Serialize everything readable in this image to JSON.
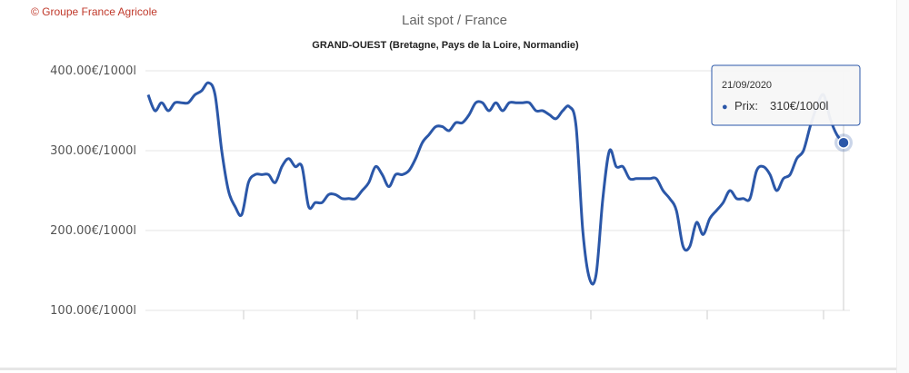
{
  "credit": "© Groupe France Agricole",
  "title": "Lait spot / France",
  "subtitle": "GRAND-OUEST (Bretagne, Pays de la Loire, Normandie)",
  "tooltip": {
    "date": "21/09/2020",
    "bullet": "●",
    "series_label": "Prix",
    "value_text": "310€/1000l"
  },
  "colors": {
    "line": "#2b57a8",
    "grid": "#e6e6e6",
    "credit": "#c0392b"
  },
  "chart_data": {
    "type": "line",
    "title": "Lait spot / France",
    "subtitle": "GRAND-OUEST (Bretagne, Pays de la Loire, Normandie)",
    "ylim": [
      100,
      400
    ],
    "y_ticks": [
      400,
      300,
      200,
      100
    ],
    "y_tick_labels": [
      "400.00€/1000l",
      "300.00€/1000l",
      "200.00€/1000l",
      "100.00€/1000l"
    ],
    "x_tick_count": 6,
    "grid": "horizontal",
    "series": [
      {
        "name": "Prix",
        "values": [
          370,
          350,
          360,
          350,
          360,
          360,
          360,
          370,
          375,
          385,
          370,
          300,
          250,
          230,
          220,
          260,
          270,
          270,
          270,
          260,
          280,
          290,
          280,
          280,
          230,
          235,
          235,
          245,
          245,
          240,
          240,
          240,
          250,
          260,
          280,
          270,
          255,
          270,
          270,
          275,
          290,
          310,
          320,
          330,
          330,
          325,
          335,
          335,
          345,
          360,
          360,
          350,
          360,
          350,
          360,
          360,
          360,
          360,
          350,
          350,
          345,
          340,
          350,
          355,
          330,
          200,
          140,
          145,
          240,
          300,
          280,
          280,
          265,
          265,
          265,
          265,
          265,
          250,
          240,
          225,
          180,
          180,
          210,
          195,
          215,
          225,
          235,
          250,
          240,
          240,
          240,
          275,
          280,
          270,
          250,
          265,
          270,
          290,
          300,
          330,
          355,
          370,
          340,
          320,
          310
        ]
      }
    ],
    "highlighted_point": {
      "index": 104,
      "value": 310,
      "date": "21/09/2020"
    }
  }
}
